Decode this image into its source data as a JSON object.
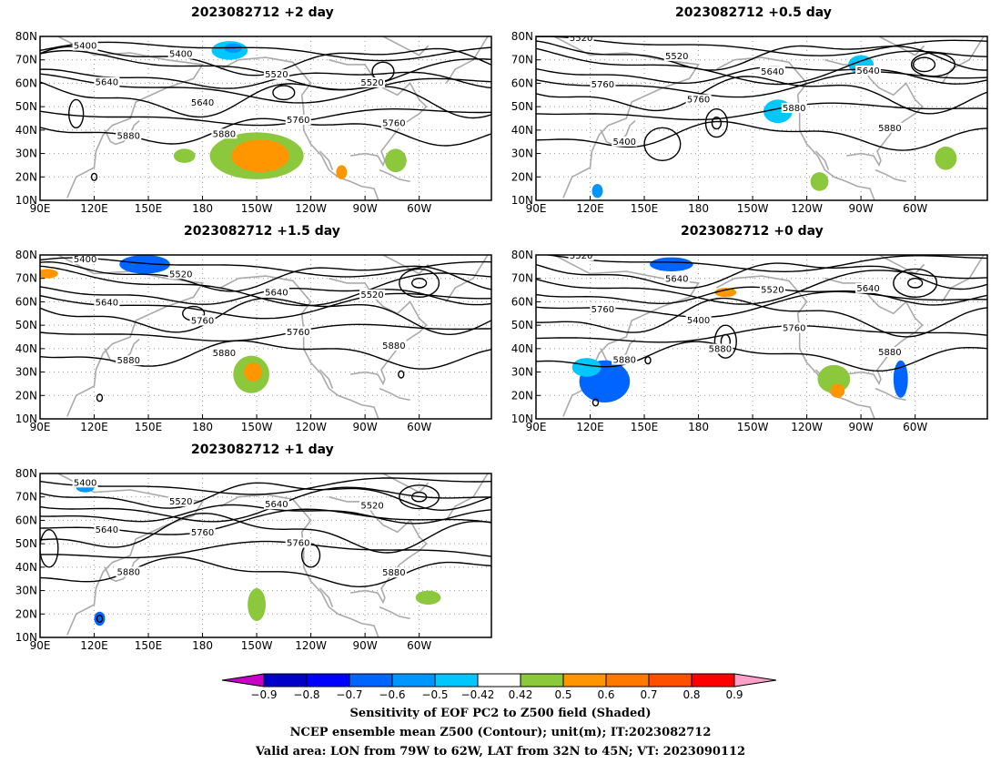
{
  "panels": [
    {
      "id": "p2",
      "title": "2023082712 +2 day",
      "contour_labels": [
        "5400",
        "5400",
        "5520",
        "5520",
        "5640",
        "5640",
        "5760",
        "5760",
        "5880",
        "5880"
      ],
      "shading": [
        {
          "lon": 210,
          "lat": 29,
          "rx": 26,
          "ry": 10,
          "color": "#8cc83c"
        },
        {
          "lon": 212,
          "lat": 29,
          "rx": 16,
          "ry": 7,
          "color": "#ff9600"
        },
        {
          "lon": 170,
          "lat": 29,
          "rx": 6,
          "ry": 3,
          "color": "#8cc83c"
        },
        {
          "lon": 195,
          "lat": 74,
          "rx": 10,
          "ry": 4,
          "color": "#00c8ff"
        },
        {
          "lon": 197,
          "lat": 75,
          "rx": 5,
          "ry": 2,
          "color": "#0096ff"
        },
        {
          "lon": 287,
          "lat": 27,
          "rx": 6,
          "ry": 5,
          "color": "#8cc83c"
        },
        {
          "lon": 257,
          "lat": 22,
          "rx": 3,
          "ry": 3,
          "color": "#ff9600"
        }
      ]
    },
    {
      "id": "p05",
      "title": "2023082712 +0.5 day",
      "contour_labels": [
        "5520",
        "5520",
        "5640",
        "5640",
        "5760",
        "5760",
        "5880",
        "5880",
        "5400"
      ],
      "shading": [
        {
          "lon": 224,
          "lat": 48,
          "rx": 8,
          "ry": 5,
          "color": "#00c8ff"
        },
        {
          "lon": 270,
          "lat": 68,
          "rx": 7,
          "ry": 4,
          "color": "#00c8ff"
        },
        {
          "lon": 247,
          "lat": 18,
          "rx": 5,
          "ry": 4,
          "color": "#8cc83c"
        },
        {
          "lon": 124,
          "lat": 14,
          "rx": 3,
          "ry": 3,
          "color": "#0096ff"
        },
        {
          "lon": 317,
          "lat": 28,
          "rx": 6,
          "ry": 5,
          "color": "#8cc83c"
        }
      ]
    },
    {
      "id": "p15",
      "title": "2023082712 +1.5 day",
      "contour_labels": [
        "5400",
        "5520",
        "5640",
        "5520",
        "5640",
        "5760",
        "5760",
        "5880",
        "5880",
        "5880"
      ],
      "shading": [
        {
          "lon": 148,
          "lat": 76,
          "rx": 14,
          "ry": 4,
          "color": "#0064ff"
        },
        {
          "lon": 207,
          "lat": 29,
          "rx": 10,
          "ry": 8,
          "color": "#8cc83c"
        },
        {
          "lon": 208,
          "lat": 30,
          "rx": 5,
          "ry": 4,
          "color": "#ff9600"
        },
        {
          "lon": 94,
          "lat": 72,
          "rx": 6,
          "ry": 2,
          "color": "#ff9600"
        }
      ]
    },
    {
      "id": "p0",
      "title": "2023082712 +0 day",
      "contour_labels": [
        "5520",
        "5640",
        "5520",
        "5640",
        "5760",
        "5400",
        "5760",
        "5880",
        "5880",
        "5880"
      ],
      "shading": [
        {
          "lon": 128,
          "lat": 26,
          "rx": 14,
          "ry": 9,
          "color": "#0064ff"
        },
        {
          "lon": 118,
          "lat": 32,
          "rx": 8,
          "ry": 4,
          "color": "#00c8ff"
        },
        {
          "lon": 165,
          "lat": 76,
          "rx": 12,
          "ry": 3,
          "color": "#0064ff"
        },
        {
          "lon": 292,
          "lat": 27,
          "rx": 4,
          "ry": 8,
          "color": "#0064ff"
        },
        {
          "lon": 255,
          "lat": 27,
          "rx": 9,
          "ry": 6,
          "color": "#8cc83c"
        },
        {
          "lon": 257,
          "lat": 22,
          "rx": 4,
          "ry": 3,
          "color": "#ff9600"
        },
        {
          "lon": 195,
          "lat": 64,
          "rx": 6,
          "ry": 2,
          "color": "#ff9600"
        }
      ]
    },
    {
      "id": "p1",
      "title": "2023082712 +1 day",
      "contour_labels": [
        "5400",
        "5520",
        "5640",
        "5520",
        "5640",
        "5760",
        "5760",
        "5880",
        "5880"
      ],
      "shading": [
        {
          "lon": 210,
          "lat": 24,
          "rx": 5,
          "ry": 7,
          "color": "#8cc83c"
        },
        {
          "lon": 305,
          "lat": 27,
          "rx": 7,
          "ry": 3,
          "color": "#8cc83c"
        },
        {
          "lon": 123,
          "lat": 18,
          "rx": 3,
          "ry": 3,
          "color": "#0064ff"
        },
        {
          "lon": 115,
          "lat": 74,
          "rx": 5,
          "ry": 2,
          "color": "#0096ff"
        }
      ]
    }
  ],
  "axes": {
    "lat_ticks": [
      "10N",
      "20N",
      "30N",
      "40N",
      "50N",
      "60N",
      "70N",
      "80N"
    ],
    "lon_ticks": [
      "90E",
      "120E",
      "150E",
      "180",
      "150W",
      "120W",
      "90W",
      "60W"
    ],
    "lon_range": [
      90,
      340
    ],
    "lat_range": [
      10,
      80
    ]
  },
  "colorbar": {
    "labels": [
      "−0.9",
      "−0.8",
      "−0.7",
      "−0.6",
      "−0.5",
      "−0.42",
      "0.42",
      "0.5",
      "0.6",
      "0.7",
      "0.8",
      "0.9"
    ],
    "below_color": "#c800c8",
    "colors": [
      "#0000c8",
      "#0000ff",
      "#0064ff",
      "#0096ff",
      "#00c8ff",
      "#ffffff",
      "#8cc83c",
      "#ff9600",
      "#ff7800",
      "#ff5000",
      "#ff0000"
    ],
    "above_color": "#ffa0c8"
  },
  "caption": {
    "line1": "Sensitivity of EOF PC2 to Z500 field (Shaded)",
    "line2": "NCEP ensemble mean Z500 (Contour); unit(m); IT:2023082712",
    "line3": "Valid area: LON from 79W to 62W, LAT from 32N to 45N; VT: 2023090112"
  }
}
